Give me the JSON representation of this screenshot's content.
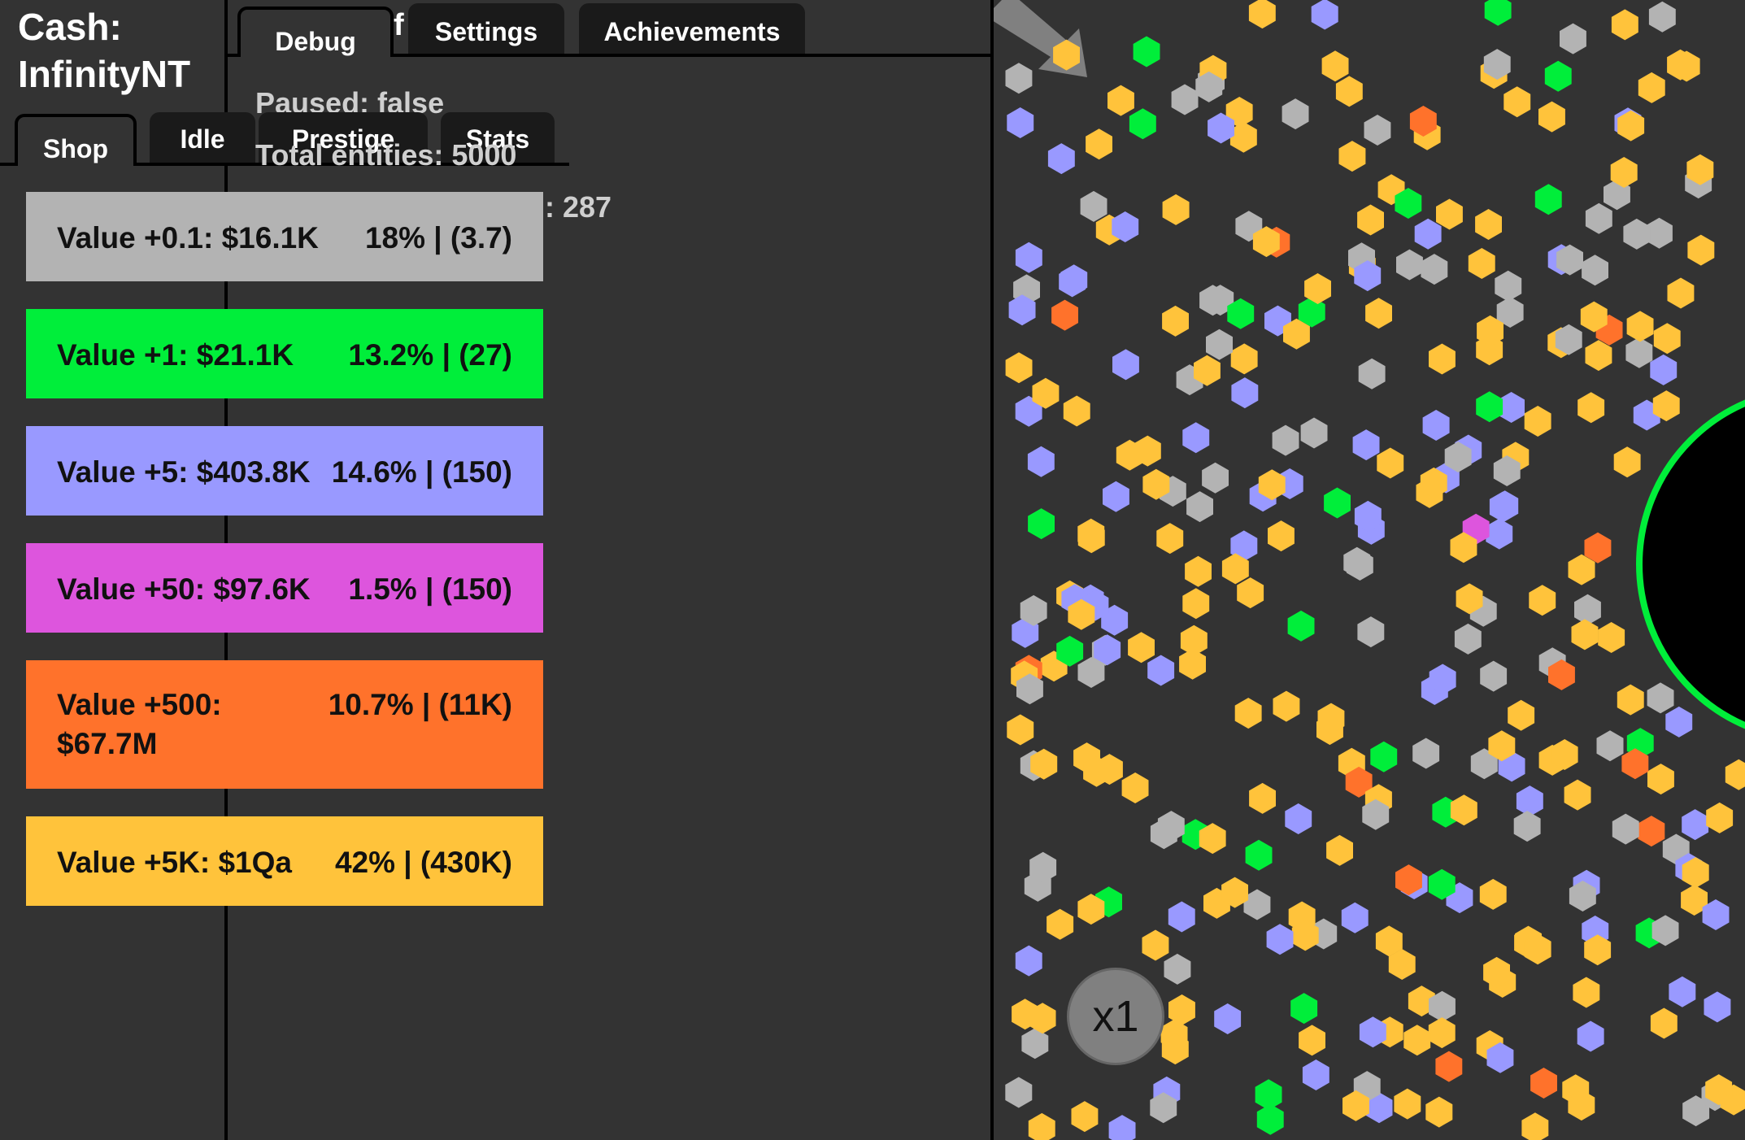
{
  "header": {
    "cash_label": "Cash:",
    "cash_value": "InfinityNT"
  },
  "left_tabs": [
    {
      "label": "Shop",
      "active": true
    },
    {
      "label": "Idle",
      "active": false
    },
    {
      "label": "Prestige",
      "active": false
    },
    {
      "label": "Stats",
      "active": false
    }
  ],
  "top_tabs": [
    {
      "label": "Debug",
      "active": true
    },
    {
      "label": "Settings",
      "active": false
    },
    {
      "label": "Achievements",
      "active": false
    }
  ],
  "debug": {
    "paused": "Paused: false",
    "total_entities": "Total entities: 5000",
    "partial_fragment": "f",
    "partial_value": ": 287"
  },
  "shop": [
    {
      "label": "Value +0.1: $16.1K",
      "stat": "18% | (3.7)",
      "color": "#b3b3b3"
    },
    {
      "label": "Value +1: $21.1K",
      "stat": "13.2% | (27)",
      "color": "#00ee3a"
    },
    {
      "label": "Value +5: $403.8K",
      "stat": "14.6% | (150)",
      "color": "#9999ff"
    },
    {
      "label": "Value +50: $97.6K",
      "stat": "1.5% | (150)",
      "color": "#dd55dd"
    },
    {
      "label": "Value +500:",
      "label2": "$67.7M",
      "stat": "10.7% | (11K)",
      "color": "#ff722b"
    },
    {
      "label": "Value +5K: $1Qa",
      "stat": "42% | (430K)",
      "color": "#ffc33b"
    }
  ],
  "game": {
    "multiplier": "x1",
    "entity_colors": [
      "#b3b3b3",
      "#00ee3a",
      "#9999ff",
      "#dd55dd",
      "#ff722b",
      "#ffc33b"
    ],
    "collector_ring_color": "#00ee3a"
  }
}
